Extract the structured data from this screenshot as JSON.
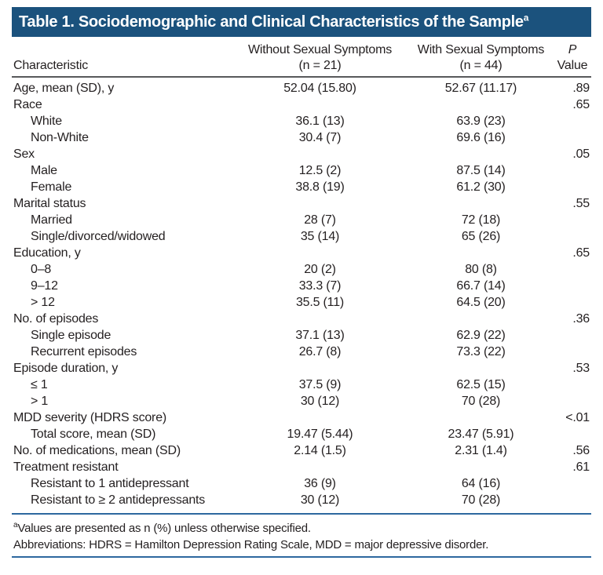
{
  "title": {
    "text": "Table 1. Sociodemographic and Clinical Characteristics of the Sample",
    "superscript": "a"
  },
  "colors": {
    "title_bar": "#1B527D",
    "rule_blue": "#2D689F",
    "rule_gray": "#58595B",
    "text": "#231F20"
  },
  "columns": {
    "characteristic": "Characteristic",
    "col2_line1": "Without Sexual Symptoms",
    "col2_line2": "(n = 21)",
    "col3_line1": "With Sexual Symptoms",
    "col3_line2": "(n = 44)",
    "p_line1": "P",
    "p_line2": "Value"
  },
  "rows": [
    {
      "label": "Age, mean (SD), y",
      "indent": 0,
      "without": "52.04 (15.80)",
      "with": "52.67 (11.17)",
      "p": ".89"
    },
    {
      "label": "Race",
      "indent": 0,
      "without": "",
      "with": "",
      "p": ".65"
    },
    {
      "label": "White",
      "indent": 1,
      "without": "36.1 (13)",
      "with": "63.9 (23)",
      "p": ""
    },
    {
      "label": "Non-White",
      "indent": 1,
      "without": "30.4 (7)",
      "with": "69.6 (16)",
      "p": ""
    },
    {
      "label": "Sex",
      "indent": 0,
      "without": "",
      "with": "",
      "p": ".05"
    },
    {
      "label": "Male",
      "indent": 1,
      "without": "12.5 (2)",
      "with": "87.5 (14)",
      "p": ""
    },
    {
      "label": "Female",
      "indent": 1,
      "without": "38.8 (19)",
      "with": "61.2 (30)",
      "p": ""
    },
    {
      "label": "Marital status",
      "indent": 0,
      "without": "",
      "with": "",
      "p": ".55"
    },
    {
      "label": "Married",
      "indent": 1,
      "without": "28 (7)",
      "with": "72 (18)",
      "p": ""
    },
    {
      "label": "Single/divorced/widowed",
      "indent": 1,
      "without": "35 (14)",
      "with": "65 (26)",
      "p": ""
    },
    {
      "label": "Education, y",
      "indent": 0,
      "without": "",
      "with": "",
      "p": ".65"
    },
    {
      "label": "0–8",
      "indent": 1,
      "without": "20 (2)",
      "with": "80 (8)",
      "p": ""
    },
    {
      "label": "9–12",
      "indent": 1,
      "without": "33.3 (7)",
      "with": "66.7 (14)",
      "p": ""
    },
    {
      "label": "> 12",
      "indent": 1,
      "without": "35.5 (11)",
      "with": "64.5 (20)",
      "p": ""
    },
    {
      "label": "No. of episodes",
      "indent": 0,
      "without": "",
      "with": "",
      "p": ".36"
    },
    {
      "label": "Single episode",
      "indent": 1,
      "without": "37.1 (13)",
      "with": "62.9 (22)",
      "p": ""
    },
    {
      "label": "Recurrent episodes",
      "indent": 1,
      "without": "26.7 (8)",
      "with": "73.3 (22)",
      "p": ""
    },
    {
      "label": "Episode duration, y",
      "indent": 0,
      "without": "",
      "with": "",
      "p": ".53"
    },
    {
      "label": "≤ 1",
      "indent": 1,
      "without": "37.5 (9)",
      "with": "62.5 (15)",
      "p": ""
    },
    {
      "label": "> 1",
      "indent": 1,
      "without": "30 (12)",
      "with": "70 (28)",
      "p": ""
    },
    {
      "label": "MDD severity (HDRS score)",
      "indent": 0,
      "without": "",
      "with": "",
      "p": "<.01"
    },
    {
      "label": "Total score, mean (SD)",
      "indent": 1,
      "without": "19.47 (5.44)",
      "with": "23.47 (5.91)",
      "p": ""
    },
    {
      "label": "No. of medications, mean (SD)",
      "indent": 0,
      "without": "2.14 (1.5)",
      "with": "2.31 (1.4)",
      "p": ".56"
    },
    {
      "label": "Treatment resistant",
      "indent": 0,
      "without": "",
      "with": "",
      "p": ".61"
    },
    {
      "label": "Resistant to 1 antidepressant",
      "indent": 1,
      "without": "36 (9)",
      "with": "64 (16)",
      "p": ""
    },
    {
      "label": "Resistant to ≥ 2 antidepressants",
      "indent": 1,
      "without": "30 (12)",
      "with": "70 (28)",
      "p": ""
    }
  ],
  "footnotes": {
    "note_superscript": "a",
    "note_text": "Values are presented as n (%) unless otherwise specified.",
    "abbreviations": "Abbreviations: HDRS = Hamilton Depression Rating Scale, MDD = major depressive disorder."
  }
}
